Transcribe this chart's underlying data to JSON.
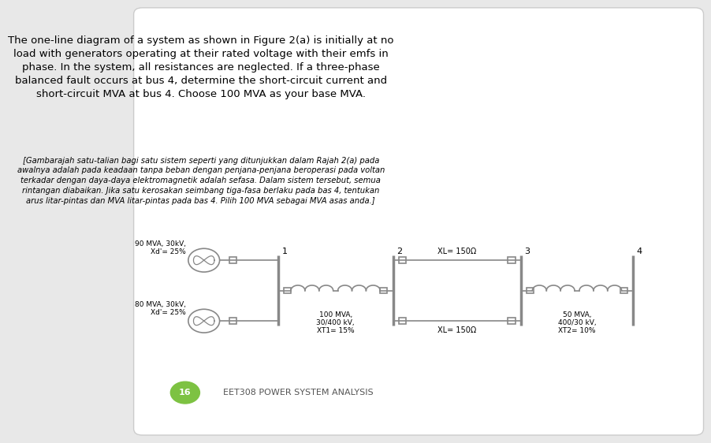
{
  "background_color": "#e8e8e8",
  "slide_bg": "#ffffff",
  "title_text": "The one-line diagram of a system as shown in Figure 2(a) is initially at no\nload with generators operating at their rated voltage with their emfs in\nphase. In the system, all resistances are neglected. If a three-phase\nbalanced fault occurs at bus 4, determine the short-circuit current and\nshort-circuit MVA at bus 4. Choose 100 MVA as your base MVA.",
  "italic_text": "[Gambarajah satu-talian bagi satu sistem seperti yang ditunjukkan dalam Rajah 2(a) pada\nawalnya adalah pada keadaan tanpa beban dengan penjana-penjana beroperasi pada voltan\nterkadar dengan daya-daya elektromagnetik adalah sefasa. Dalam sistem tersebut, semua\nrintangan diabaikan. Jika satu kerosakan seimbang tiga-fasa berlaku pada bas 4, tentukan\narus litar-pintas dan MVA litar-pintas pada bas 4. Pilih 100 MVA sebagai MVA asas anda.]",
  "footer_text": "EET308 POWER SYSTEM ANALYSIS",
  "page_num": "16",
  "line_color": "#888888",
  "text_color": "#000000",
  "gen1_label": "90 MVA, 30kV,\nXd'= 25%",
  "gen2_label": "80 MVA, 30kV,\nXd'= 25%",
  "tx1_label": "100 MVA,\n30/400 kV,\nXT1= 15%",
  "tx2_label": "50 MVA,\n400/30 kV,\nXT2= 10%",
  "line1_label": "XL= 150Ω",
  "line2_label": "XL= 150Ω",
  "bus_labels": [
    "1",
    "2",
    "3",
    "4"
  ],
  "badge_color": "#7dc242",
  "footer_color": "#555555"
}
